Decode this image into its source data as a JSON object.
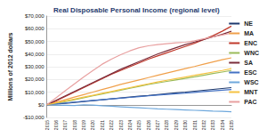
{
  "chart_data": {
    "type": "line",
    "title": "Real Disposable Personal Income (regional level)",
    "y_label": "Millions of 2012 dollars",
    "categories": [
      "2015",
      "2016",
      "2017",
      "2018",
      "2019",
      "2020",
      "2021",
      "2022",
      "2023",
      "2024",
      "2025",
      "2026",
      "2027",
      "2028",
      "2029",
      "2030",
      "2031",
      "2032",
      "2033",
      "2034",
      "2035"
    ],
    "series": [
      {
        "name": "NE",
        "color": "#1f3a6e",
        "values": [
          0,
          600,
          1200,
          1900,
          2500,
          3200,
          3900,
          4600,
          5300,
          6000,
          6700,
          7300,
          8000,
          8700,
          9400,
          10000,
          10700,
          11400,
          12100,
          12800,
          13500
        ]
      },
      {
        "name": "MA",
        "color": "#f0a04b",
        "values": [
          0,
          2000,
          4000,
          6000,
          8000,
          10000,
          12000,
          14000,
          16000,
          17800,
          19600,
          21400,
          23200,
          25000,
          26800,
          28500,
          30200,
          32000,
          33800,
          35500,
          37000
        ]
      },
      {
        "name": "ENC",
        "color": "#c0392b",
        "values": [
          0,
          3000,
          6500,
          10000,
          13500,
          17000,
          20500,
          24000,
          27000,
          30000,
          33000,
          36000,
          38500,
          41000,
          43500,
          46000,
          48500,
          51500,
          54500,
          58000,
          62000
        ]
      },
      {
        "name": "WNC",
        "color": "#9bbb59",
        "values": [
          0,
          1000,
          2500,
          4000,
          5500,
          7000,
          8500,
          10000,
          11500,
          13000,
          14500,
          16000,
          17200,
          18400,
          19600,
          20800,
          22000,
          23300,
          24600,
          25800,
          27000
        ]
      },
      {
        "name": "SA",
        "color": "#7b2c3a",
        "values": [
          0,
          3500,
          7000,
          10500,
          14000,
          17500,
          21000,
          24500,
          28000,
          31000,
          34000,
          37000,
          40000,
          42500,
          45000,
          47500,
          49500,
          51500,
          53500,
          55500,
          58000
        ]
      },
      {
        "name": "ESC",
        "color": "#4472c4",
        "values": [
          0,
          700,
          1400,
          2100,
          2800,
          3400,
          4000,
          4600,
          5200,
          5800,
          6400,
          7000,
          7600,
          8200,
          8700,
          9200,
          9800,
          10400,
          11000,
          11500,
          12000
        ]
      },
      {
        "name": "WSC",
        "color": "#6fa8dc",
        "values": [
          0,
          -200,
          -400,
          -600,
          0,
          -300,
          -800,
          -1200,
          -1600,
          -2000,
          -2400,
          -2800,
          -3200,
          -3500,
          -3800,
          -4100,
          -4400,
          -4700,
          -5000,
          -5200,
          -5500
        ]
      },
      {
        "name": "MNT",
        "color": "#f5c342",
        "values": [
          0,
          1500,
          3000,
          4500,
          6000,
          7500,
          9000,
          10500,
          12000,
          13500,
          15000,
          16500,
          18000,
          19300,
          20600,
          21900,
          23200,
          24500,
          25800,
          27000,
          28500
        ]
      },
      {
        "name": "PAC",
        "color": "#e8a0a0",
        "values": [
          0,
          5500,
          11000,
          16500,
          22000,
          27000,
          32000,
          36000,
          39500,
          42500,
          45000,
          46500,
          47500,
          48200,
          48800,
          49300,
          50500,
          52000,
          53500,
          55000,
          56500
        ]
      }
    ],
    "ylim": [
      -10000,
      70000
    ],
    "yticks": [
      {
        "value": -10000,
        "label": "-$10,000"
      },
      {
        "value": 0,
        "label": "$0"
      },
      {
        "value": 10000,
        "label": "$10,000"
      },
      {
        "value": 20000,
        "label": "$20,000"
      },
      {
        "value": 30000,
        "label": "$30,000"
      },
      {
        "value": 40000,
        "label": "$40,000"
      },
      {
        "value": 50000,
        "label": "$50,000"
      },
      {
        "value": 60000,
        "label": "$60,000"
      },
      {
        "value": 70000,
        "label": "$70,000"
      }
    ],
    "grid": true,
    "legend": "right"
  }
}
